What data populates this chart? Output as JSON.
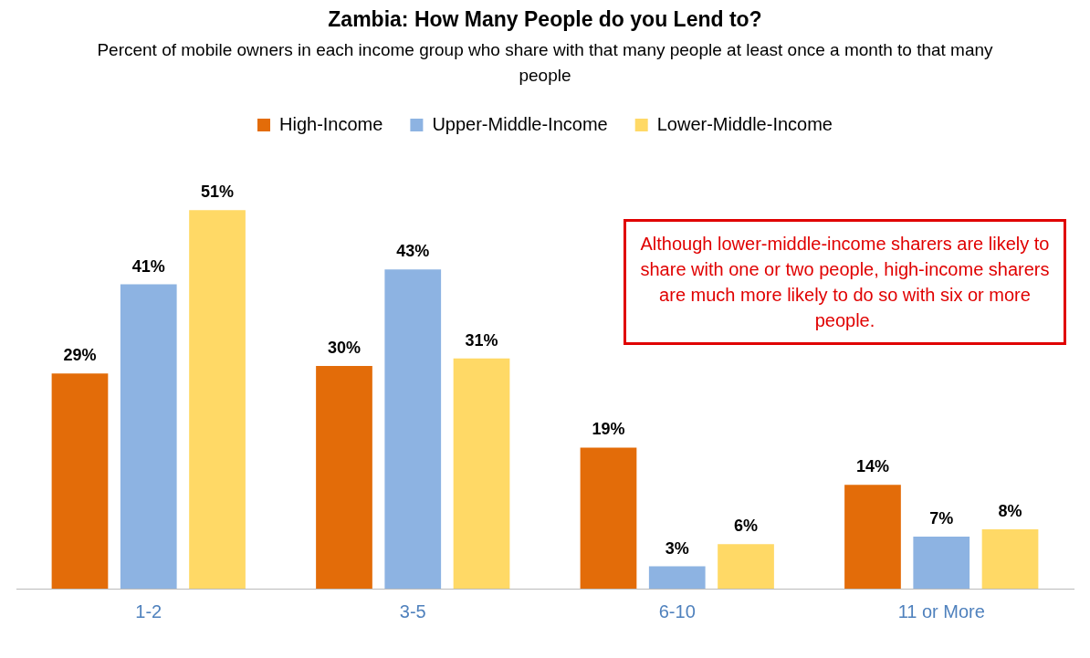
{
  "chart_data": {
    "type": "bar",
    "title": "Zambia: How Many People do you Lend to?",
    "subtitle": "Percent of mobile owners in each income group who share with that many people at least once a month to that many people",
    "categories": [
      "1-2",
      "3-5",
      "6-10",
      "11 or More"
    ],
    "series": [
      {
        "name": "High-Income",
        "color": "#e36c09",
        "values": [
          29,
          30,
          19,
          14
        ],
        "value_labels": [
          "29%",
          "30%",
          "19%",
          "14%"
        ]
      },
      {
        "name": "Upper-Middle-Income",
        "color": "#8db3e2",
        "values": [
          41,
          43,
          3,
          7
        ],
        "value_labels": [
          "41%",
          "43%",
          "3%",
          "7%"
        ]
      },
      {
        "name": "Lower-Middle-Income",
        "color": "#ffd966",
        "values": [
          51,
          31,
          6,
          8
        ],
        "value_labels": [
          "51%",
          "31%",
          "6%",
          "8%"
        ]
      }
    ],
    "annotations": [
      "Although lower-middle-income sharers are likely to share with one or two people, high-income sharers are much more likely to do so with six or more people."
    ],
    "legend": "top",
    "grid": false
  }
}
